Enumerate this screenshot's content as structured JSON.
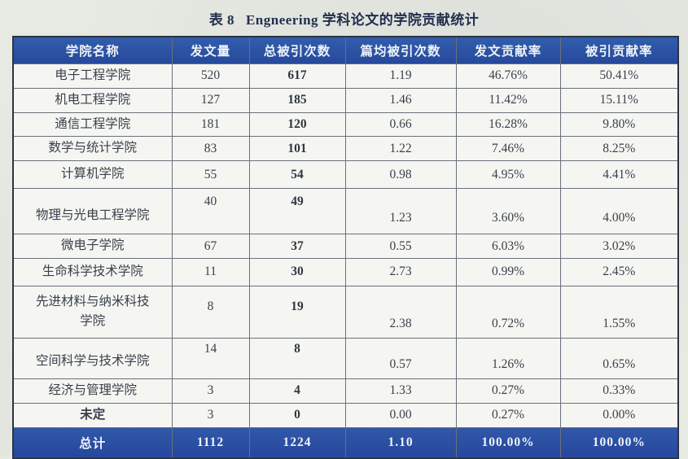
{
  "title": {
    "label": "表 8",
    "text": "Engneering 学科论文的学院贡献统计"
  },
  "colors": {
    "page_background": "#e7e9e3",
    "header_blue": "#2c55a5",
    "total_row_blue": "#2b50a3",
    "header_text": "#eef2f8",
    "body_text": "#39404b",
    "title_text": "#222f4e"
  },
  "table": {
    "headers": [
      "学院名称",
      "发文量",
      "总被引次数",
      "篇均被引次数",
      "发文贡献率",
      "被引贡献率"
    ],
    "rows": [
      {
        "name": "电子工程学院",
        "values": [
          "520",
          "617",
          "1.19",
          "46.76%",
          "50.41%"
        ],
        "variant": "normal"
      },
      {
        "name": "机电工程学院",
        "values": [
          "127",
          "185",
          "1.46",
          "11.42%",
          "15.11%"
        ],
        "variant": "normal"
      },
      {
        "name": "通信工程学院",
        "values": [
          "181",
          "120",
          "0.66",
          "16.28%",
          "9.80%"
        ],
        "variant": "normal"
      },
      {
        "name": "数学与统计学院",
        "values": [
          "83",
          "101",
          "1.22",
          "7.46%",
          "8.25%"
        ],
        "variant": "normal"
      },
      {
        "name": "计算机学院",
        "values": [
          "55",
          "54",
          "0.98",
          "4.95%",
          "4.41%"
        ],
        "variant": "roomy"
      },
      {
        "name": "物理与光电工程学院",
        "values": [
          "40",
          "49",
          "1.23",
          "3.60%",
          "4.00%"
        ],
        "variant": "tall"
      },
      {
        "name": "微电子学院",
        "values": [
          "67",
          "37",
          "0.55",
          "6.03%",
          "3.02%"
        ],
        "variant": "normal"
      },
      {
        "name": "生命科学技术学院",
        "values": [
          "11",
          "30",
          "2.73",
          "0.99%",
          "2.45%"
        ],
        "variant": "roomy"
      },
      {
        "name": "先进材料与纳米科技\n学院",
        "values": [
          "8",
          "19",
          "2.38",
          "0.72%",
          "1.55%"
        ],
        "variant": "wrap"
      },
      {
        "name": "空间科学与技术学院",
        "values": [
          "14",
          "8",
          "0.57",
          "1.26%",
          "0.65%"
        ],
        "variant": "split"
      },
      {
        "name": "经济与管理学院",
        "values": [
          "3",
          "4",
          "1.33",
          "0.27%",
          "0.33%"
        ],
        "variant": "normal"
      },
      {
        "name": "未定",
        "values": [
          "3",
          "0",
          "0.00",
          "0.27%",
          "0.00%"
        ],
        "variant": "normal",
        "name_bold": true
      }
    ],
    "total_row": {
      "name": "总计",
      "values": [
        "1112",
        "1224",
        "1.10",
        "100.00%",
        "100.00%"
      ]
    }
  }
}
